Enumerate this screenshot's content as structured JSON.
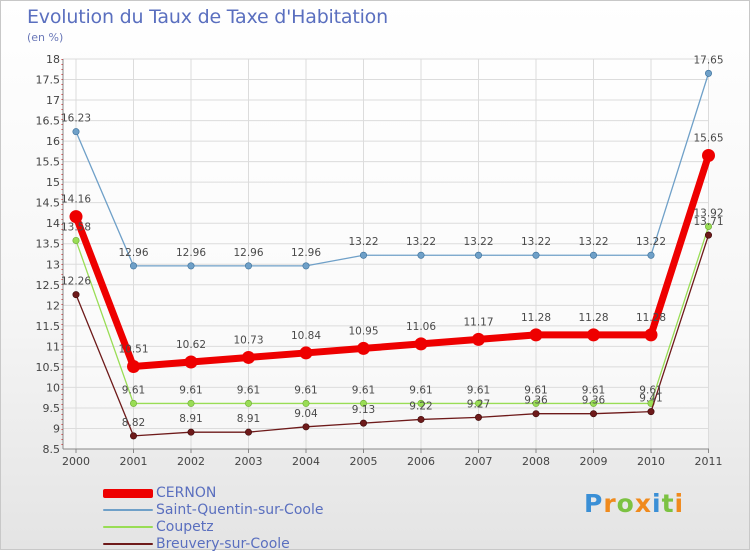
{
  "chart_data": {
    "type": "line",
    "title": "Evolution du Taux de Taxe d'Habitation",
    "subtitle": "(en %)",
    "xlabel": "",
    "ylabel": "",
    "categories": [
      "2000",
      "2001",
      "2002",
      "2003",
      "2004",
      "2005",
      "2006",
      "2007",
      "2008",
      "2009",
      "2010",
      "2011"
    ],
    "ylim": [
      8.5,
      18
    ],
    "yticks": [
      "8.5",
      "9",
      "9.5",
      "10",
      "10.5",
      "11",
      "11.5",
      "12",
      "12.5",
      "13",
      "13.5",
      "14",
      "14.5",
      "15",
      "15.5",
      "16",
      "16.5",
      "17",
      "17.5",
      "18"
    ],
    "grid": true,
    "legend_position": "bottom-left",
    "series": [
      {
        "name": "CERNON",
        "color": "#ee0000",
        "values": [
          14.16,
          10.51,
          10.62,
          10.73,
          10.84,
          10.95,
          11.06,
          11.17,
          11.28,
          11.28,
          11.28,
          15.65
        ],
        "labels": [
          "14.16",
          "10.51",
          "10.62",
          "10.73",
          "10.84",
          "10.95",
          "11.06",
          "11.17",
          "11.28",
          "11.28",
          "11.28",
          "15.65"
        ]
      },
      {
        "name": "Saint-Quentin-sur-Coole",
        "color": "#6fa0c8",
        "values": [
          16.23,
          12.96,
          12.96,
          12.96,
          12.96,
          13.22,
          13.22,
          13.22,
          13.22,
          13.22,
          13.22,
          17.65
        ],
        "labels": [
          "16.23",
          "12.96",
          "12.96",
          "12.96",
          "12.96",
          "13.22",
          "13.22",
          "13.22",
          "13.22",
          "13.22",
          "13.22",
          "17.65"
        ]
      },
      {
        "name": "Coupetz",
        "color": "#99dd55",
        "values": [
          13.58,
          9.61,
          9.61,
          9.61,
          9.61,
          9.61,
          9.61,
          9.61,
          9.61,
          9.61,
          9.61,
          13.92
        ],
        "labels": [
          "13.58",
          "9.61",
          "9.61",
          "9.61",
          "9.61",
          "9.61",
          "9.61",
          "9.61",
          "9.61",
          "9.61",
          "9.61",
          "13.92"
        ]
      },
      {
        "name": "Breuvery-sur-Coole",
        "color": "#6e1a1a",
        "values": [
          12.26,
          8.82,
          8.91,
          8.91,
          9.04,
          9.13,
          9.22,
          9.27,
          9.36,
          9.36,
          9.41,
          13.71
        ],
        "labels": [
          "12.26",
          "8.82",
          "8.91",
          "8.91",
          "9.04",
          "9.13",
          "9.22",
          "9.27",
          "9.36",
          "9.36",
          "9.41",
          "13.71"
        ]
      }
    ]
  },
  "logo": {
    "letters": [
      "P",
      "r",
      "o",
      "x",
      "i",
      "t",
      "i"
    ],
    "colors": [
      "#3a8fd6",
      "#f08a1c",
      "#7cc242",
      "#f08a1c",
      "#3a8fd6",
      "#7cc242",
      "#f08a1c"
    ]
  }
}
